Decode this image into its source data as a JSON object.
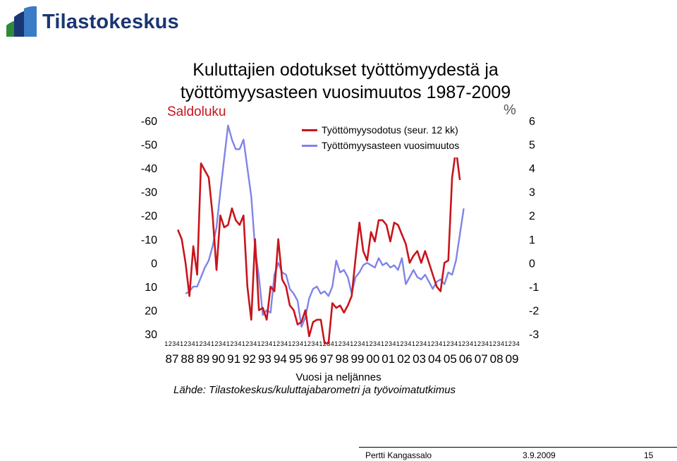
{
  "brand": {
    "name": "Tilastokeskus",
    "color": "#1a3673"
  },
  "title_line1": "Kuluttajien odotukset työttömyydestä ja",
  "title_line2": "työttömyysasteen vuosimuutos 1987-2009",
  "left_unit": "Saldoluku",
  "right_unit": "%",
  "xlabel": "Vuosi ja neljännes",
  "source": "Lähde: Tilastokeskus/kuluttajabarometri ja työvoimatutkimus",
  "footer": {
    "author": "Pertti Kangassalo",
    "date": "3.9.2009",
    "page": "15"
  },
  "chart_data": {
    "type": "line",
    "x_quarter_labels": [
      "1",
      "2",
      "3",
      "4"
    ],
    "x_year_labels": [
      "87",
      "88",
      "89",
      "90",
      "91",
      "92",
      "93",
      "94",
      "95",
      "96",
      "97",
      "98",
      "99",
      "00",
      "01",
      "02",
      "03",
      "04",
      "05",
      "06",
      "07",
      "08",
      "09"
    ],
    "left_axis": {
      "label": "Saldoluku",
      "ticks": [
        -60,
        -50,
        -40,
        -30,
        -20,
        -10,
        0,
        10,
        20,
        30
      ],
      "inverted": true
    },
    "right_axis": {
      "label": "%",
      "ticks": [
        6,
        5,
        4,
        3,
        2,
        1,
        0,
        -1,
        -2,
        -3
      ]
    },
    "xlabel": "Vuosi ja neljännes",
    "series": [
      {
        "name": "Työttömyysodotus (seur. 12 kk)",
        "axis": "left",
        "color": "#c8141c",
        "start": "1987Q4",
        "values": [
          -14,
          -10,
          0,
          14,
          -7,
          5,
          -42,
          -39,
          -36,
          -20,
          3,
          -20,
          -15,
          -16,
          -23,
          -18,
          -16,
          -20,
          10,
          24,
          -10,
          20,
          19,
          24,
          10,
          12,
          -10,
          7,
          10,
          18,
          20,
          26,
          25,
          20,
          31,
          25,
          24,
          24,
          34,
          34,
          17,
          19,
          18,
          21,
          18,
          14,
          -2,
          -17,
          -5,
          -1,
          -13,
          -9,
          -18,
          -18,
          -16,
          -9,
          -17,
          -16,
          -12,
          -8,
          0,
          -3,
          -5,
          0,
          -5,
          0,
          5,
          10,
          12,
          0,
          -1,
          -36,
          -48,
          -35
        ]
      },
      {
        "name": "Työttömyysasteen vuosimuutos",
        "axis": "right",
        "color": "#8084e6",
        "start": "1988Q2",
        "values": [
          -1.3,
          -1.2,
          -1.0,
          -1.0,
          -0.6,
          -0.2,
          0.1,
          0.7,
          1.5,
          3.0,
          4.4,
          5.8,
          5.2,
          4.8,
          4.8,
          5.2,
          4.0,
          2.8,
          0.6,
          -0.6,
          -2.2,
          -2.0,
          -2.1,
          -0.5,
          0.0,
          -0.4,
          -0.5,
          -1.1,
          -1.3,
          -1.6,
          -2.7,
          -2.3,
          -1.5,
          -1.1,
          -1.0,
          -1.3,
          -1.2,
          -1.4,
          -1.0,
          0.1,
          -0.4,
          -0.3,
          -0.6,
          -1.3,
          -0.6,
          -0.4,
          -0.1,
          0.0,
          -0.1,
          -0.2,
          0.2,
          -0.1,
          0.0,
          -0.2,
          -0.1,
          -0.3,
          0.2,
          -0.9,
          -0.6,
          -0.3,
          -0.6,
          -0.7,
          -0.5,
          -0.8,
          -1.1,
          -0.8,
          -0.7,
          -0.9,
          -0.4,
          -0.5,
          0.1,
          1.2,
          2.3
        ]
      }
    ]
  }
}
